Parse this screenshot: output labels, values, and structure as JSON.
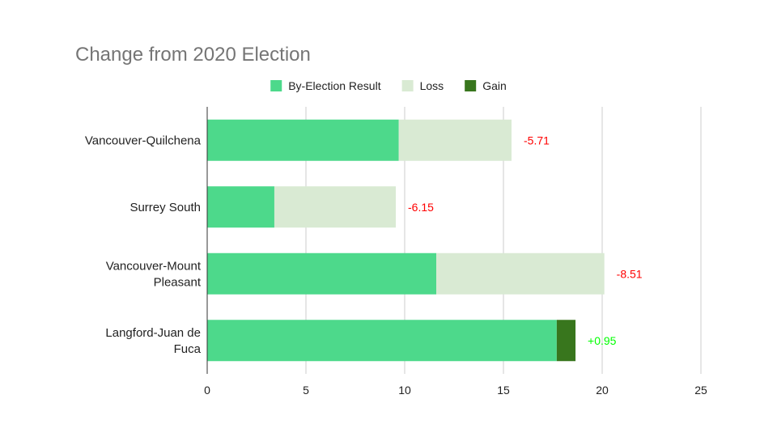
{
  "chart_data": {
    "type": "bar",
    "orientation": "horizontal",
    "stacked": true,
    "title": "Change from 2020 Election",
    "xlabel": "",
    "ylabel": "",
    "categories": [
      [
        "Vancouver-Quilchena"
      ],
      [
        "Surrey South"
      ],
      [
        "Vancouver-Mount",
        "Pleasant"
      ],
      [
        "Langford-Juan de",
        "Fuca"
      ]
    ],
    "series": [
      {
        "name": "By-Election Result",
        "color": "#4dd98b",
        "values": [
          9.7,
          3.4,
          11.6,
          17.7
        ]
      },
      {
        "name": "Loss",
        "color": "#d9ead3",
        "values": [
          5.71,
          6.15,
          8.51,
          0
        ]
      },
      {
        "name": "Gain",
        "color": "#38761d",
        "values": [
          0,
          0,
          0,
          0.95
        ]
      }
    ],
    "data_labels": [
      "-5.71",
      "-6.15",
      "-8.51",
      "+0.95"
    ],
    "data_label_colors": [
      "#ff0000",
      "#ff0000",
      "#ff0000",
      "#00ff00"
    ],
    "xlim": [
      0,
      25
    ],
    "xticks": [
      0,
      5,
      10,
      15,
      20,
      25
    ],
    "grid": true,
    "legend_position": "top"
  }
}
